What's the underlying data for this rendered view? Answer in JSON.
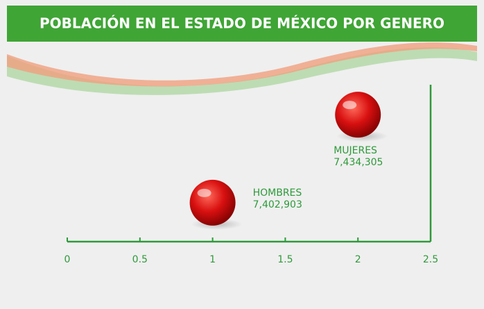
{
  "chart_data": {
    "type": "scatter",
    "title": "POBLACIÓN EN EL ESTADO DE MÉXICO POR GENERO",
    "x": [
      1,
      2
    ],
    "values": [
      7402903,
      7434305
    ],
    "value_labels": [
      "7,402,903",
      "7,434,305"
    ],
    "labels": [
      "HOMBRES",
      "MUJERES"
    ],
    "color": "#d81010",
    "xlim": [
      0,
      2.5
    ],
    "xticks": [
      0,
      0.5,
      1,
      1.5,
      2,
      2.5
    ],
    "ylim": [
      7389000,
      7445000
    ]
  }
}
